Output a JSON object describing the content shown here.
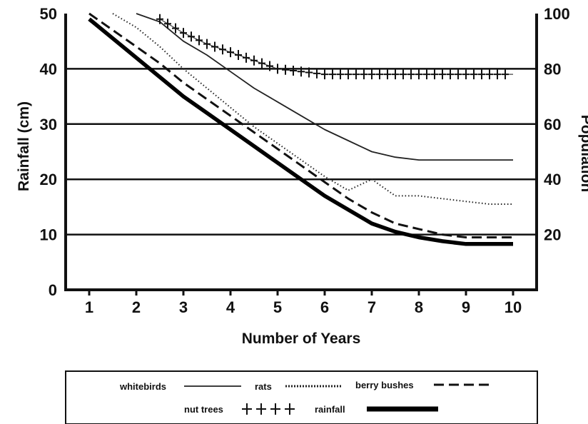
{
  "chart_data": {
    "type": "line",
    "title": "",
    "xlabel": "Number of Years",
    "ylabel_left": "Rainfall (cm)",
    "ylabel_right": "Population",
    "x": [
      1,
      1.5,
      2,
      2.5,
      3,
      3.5,
      4,
      4.5,
      5,
      5.5,
      6,
      6.5,
      7,
      7.5,
      8,
      8.5,
      9,
      9.5,
      10
    ],
    "xlim": [
      0.5,
      10.5
    ],
    "xticks": [
      "1",
      "2",
      "3",
      "4",
      "5",
      "6",
      "7",
      "8",
      "9",
      "10"
    ],
    "ylim_left": [
      0,
      50
    ],
    "yticks_left": [
      "0",
      "10",
      "20",
      "30",
      "40",
      "50"
    ],
    "ylim_right": [
      0,
      100
    ],
    "yticks_right": [
      "20",
      "40",
      "60",
      "80",
      "100"
    ],
    "grid": "horizontal",
    "series": [
      {
        "name": "whitebirds",
        "axis": "right",
        "style": "thin-solid",
        "values": [
          null,
          null,
          100,
          97,
          90,
          85,
          79,
          73,
          68,
          63,
          58,
          54,
          50,
          48,
          47,
          47,
          47,
          47,
          47
        ]
      },
      {
        "name": "rats",
        "axis": "right",
        "style": "dotted",
        "values": [
          null,
          100,
          95,
          88,
          80,
          73,
          66,
          59,
          53,
          47,
          41,
          36,
          40,
          34,
          34,
          33,
          32,
          31,
          31
        ]
      },
      {
        "name": "berry bushes",
        "axis": "left",
        "style": "dashed",
        "values": [
          50,
          47,
          44,
          41,
          37.5,
          34.5,
          31.5,
          28.5,
          25.5,
          22.5,
          19.5,
          16.5,
          14,
          12,
          11,
          10,
          9.5,
          9.5,
          9.5
        ]
      },
      {
        "name": "nut trees",
        "axis": "right",
        "style": "crosses",
        "values": [
          null,
          null,
          null,
          98,
          93,
          89,
          86,
          83,
          80,
          79,
          78,
          78,
          78,
          78,
          78,
          78,
          78,
          78,
          78
        ]
      },
      {
        "name": "rainfall",
        "axis": "left",
        "style": "thick-solid",
        "values": [
          49,
          45.5,
          42,
          38.5,
          35,
          32,
          29,
          26,
          23,
          20,
          17,
          14.5,
          12,
          10.5,
          9.5,
          8.8,
          8.3,
          8.3,
          8.3
        ]
      }
    ],
    "legend": {
      "placement": "bottom",
      "entries": [
        {
          "label": "whitebirds",
          "style": "thin-solid"
        },
        {
          "label": "rats",
          "style": "dotted"
        },
        {
          "label": "berry bushes",
          "style": "dashed"
        },
        {
          "label": "nut trees",
          "style": "crosses"
        },
        {
          "label": "rainfall",
          "style": "thick-solid"
        }
      ]
    }
  }
}
